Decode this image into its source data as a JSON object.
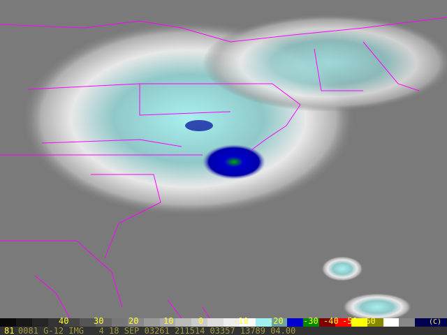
{
  "image": {
    "subject": "satellite infrared imagery",
    "overlay_color": "#ff00ff",
    "storm_core_colors": [
      "#0000cc",
      "#00aa00",
      "#a0f0f0"
    ]
  },
  "colorbar": {
    "labels": [
      "40",
      "30",
      "20",
      "10",
      "0",
      "-10",
      "-20",
      "-30",
      "-40",
      "-50",
      "-60"
    ],
    "units": "(C)"
  },
  "infobar": {
    "frame": "81",
    "text": "0081 G-12 IMG   4 18 SEP 03261 211514 03357 13789 04.00"
  }
}
